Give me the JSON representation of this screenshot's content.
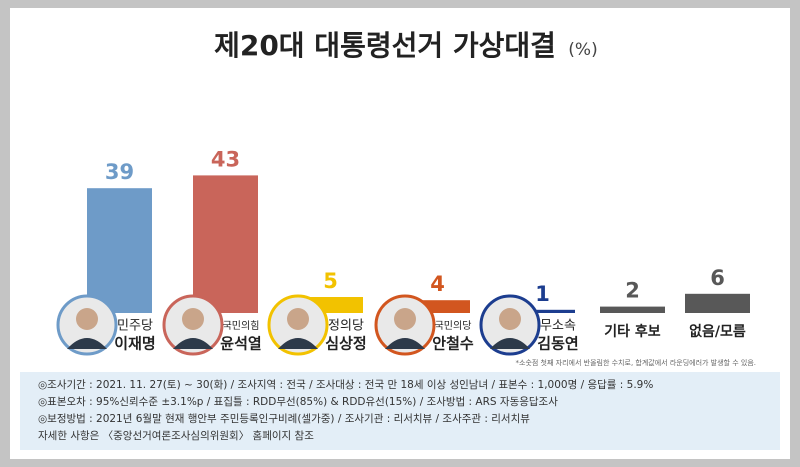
{
  "chart_data": {
    "type": "bar",
    "title": "제20대 대통령선거 가상대결",
    "unit": "(%)",
    "categories": [
      "이재명",
      "윤석열",
      "심상정",
      "안철수",
      "김동연",
      "기타 후보",
      "없음/모름"
    ],
    "parties": [
      "민주당",
      "국민의힘",
      "정의당",
      "국민의당",
      "무소속",
      null,
      null
    ],
    "values": [
      39,
      43,
      5,
      4,
      1,
      2,
      6
    ],
    "colors": [
      "#6e9bc8",
      "#c9655a",
      "#f2c200",
      "#d2561f",
      "#1c3d8f",
      "#585858",
      "#585858"
    ],
    "ylim": [
      0,
      45
    ],
    "footnote": "*소숫점 첫째 자리에서 반올림한 수치로, 합계값에서 라운딩에러가 발생할 수 있음.",
    "notes": [
      "◎조사기간 : 2021. 11. 27(토) ~ 30(화) / 조사지역 : 전국 / 조사대상 : 전국 만 18세 이상 성인남녀 / 표본수 : 1,000명 / 응답률 : 5.9%",
      "◎표본오차 : 95%신뢰수준 ±3.1%p / 표집틀 : RDD무선(85%) & RDD유선(15%) / 조사방법 : ARS 자동응답조사",
      "◎보정방법 : 2021년 6월말 현재 행안부 주민등록인구비례(셀가중) / 조사기관 : 리서치뷰 / 조사주관 : 리서치뷰",
      "자세한 사항은 〈중앙선거여론조사심의위원회〉 홈페이지 참조"
    ]
  }
}
